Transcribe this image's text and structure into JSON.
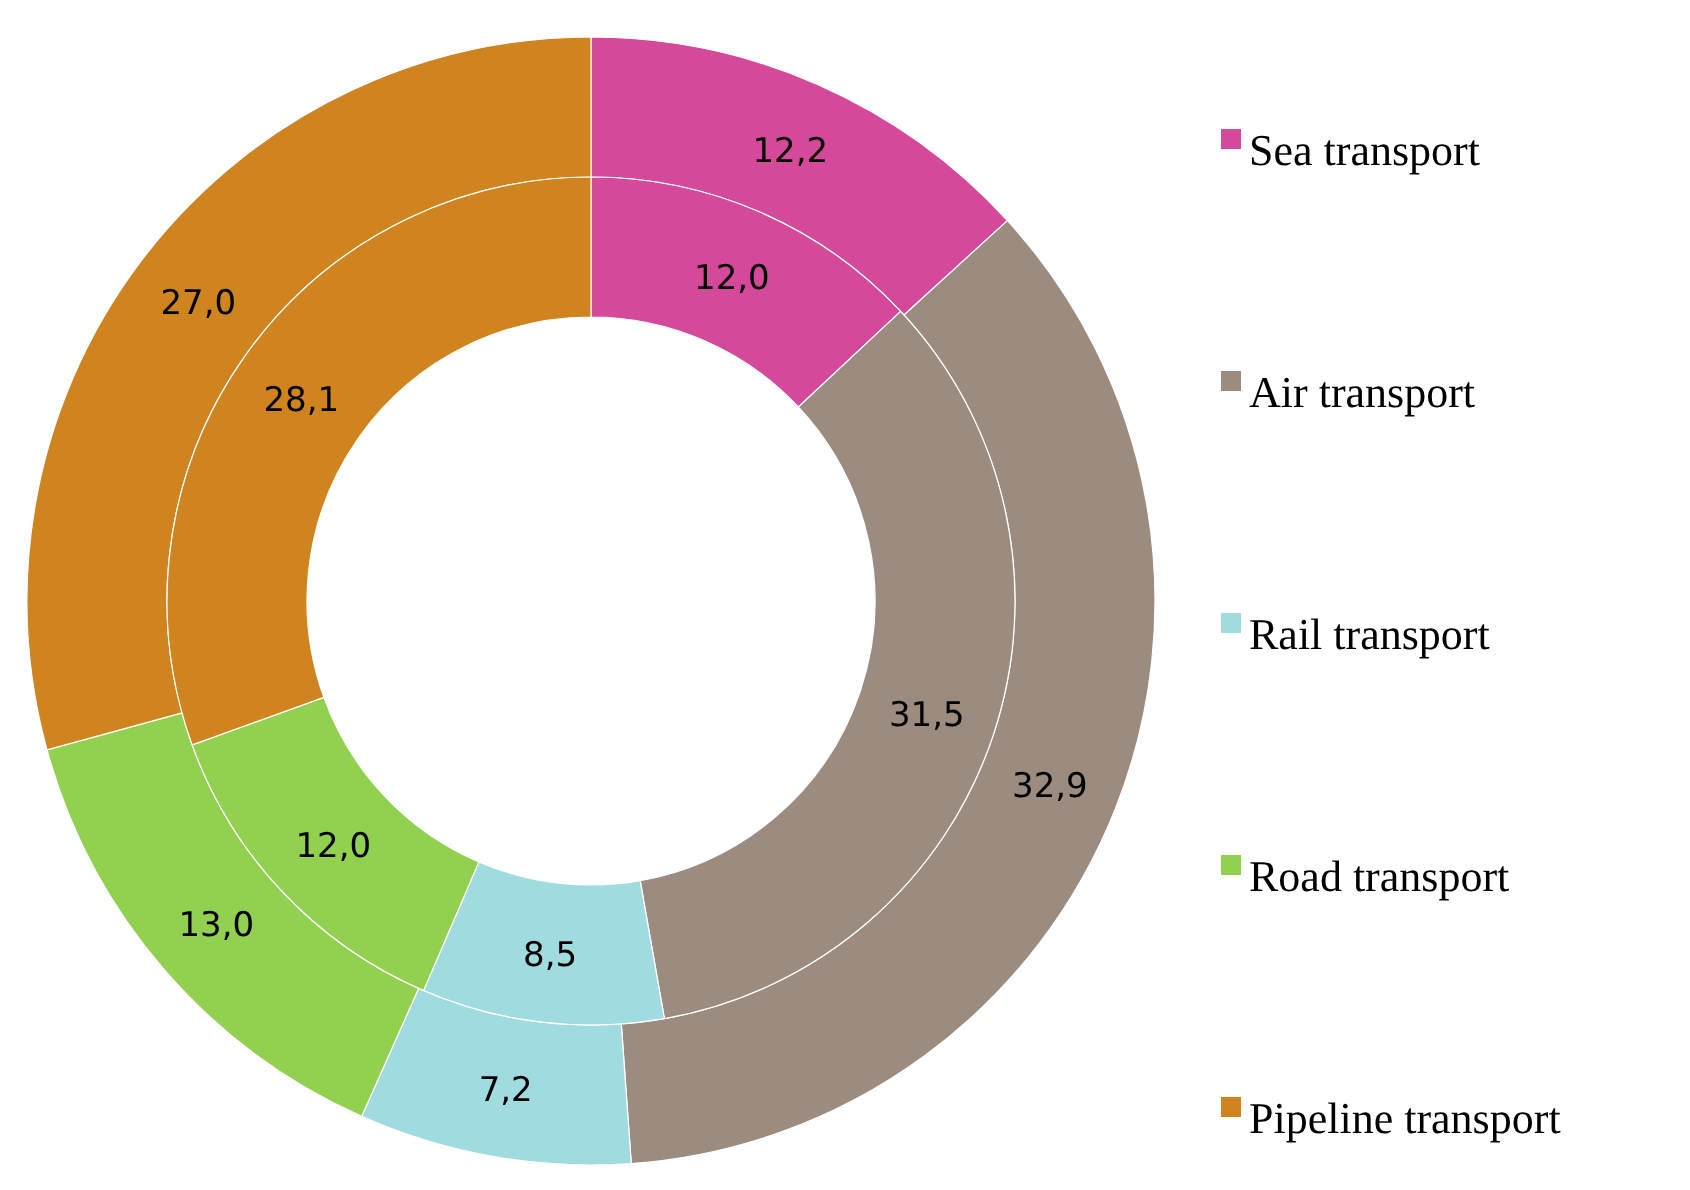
{
  "chart_data": {
    "type": "donut",
    "categories": [
      "Sea transport",
      "Air transport",
      "Rail  transport",
      "Road transport",
      "Pipeline transport"
    ],
    "colors": [
      "#d4499a",
      "#9c8c80",
      "#a0dbe0",
      "#92d050",
      "#d08420"
    ],
    "series": [
      {
        "values": [
          12.2,
          32.9,
          7.2,
          13.0,
          27.0
        ],
        "value_labels": [
          "12,2",
          "32,9",
          "7,2",
          "13,0",
          "27,0"
        ]
      },
      {
        "values": [
          12.0,
          31.5,
          8.5,
          12.0,
          28.1
        ],
        "value_labels": [
          "12,0",
          "31,5",
          "8,5",
          "12,0",
          "28,1"
        ]
      }
    ],
    "legend": "right"
  }
}
